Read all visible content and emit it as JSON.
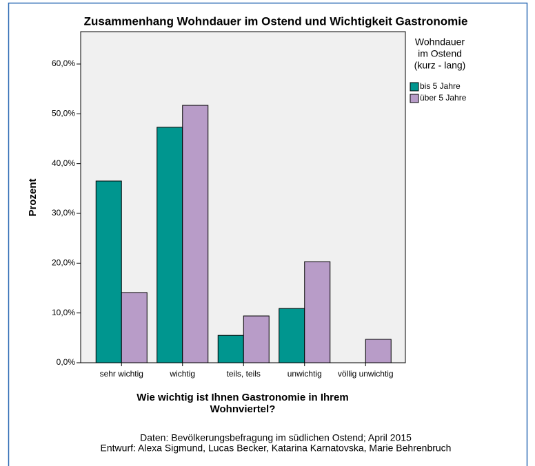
{
  "chart_data": {
    "type": "bar",
    "title": "Zusammenhang Wohndauer im Ostend und Wichtigkeit Gastronomie",
    "xlabel": [
      "Wie wichtig ist Ihnen Gastronomie in Ihrem",
      "Wohnviertel?"
    ],
    "ylabel": "Prozent",
    "legend_title": [
      "Wohndauer",
      "im Ostend",
      "(kurz - lang)"
    ],
    "notes": [
      "Daten: Bevölkerungsbefragung im südlichen Ostend; April 2015",
      "Entwurf: Alexa Sigmund, Lucas Becker, Katarina Karnatovska, Marie Behrenbruch"
    ],
    "categories": [
      "sehr wichtig",
      "wichtig",
      "teils, teils",
      "unwichtig",
      "völlig unwichtig"
    ],
    "series": [
      {
        "name": "bis 5 Jahre",
        "color": "#00968f",
        "values": [
          36.5,
          47.3,
          5.5,
          10.9,
          0
        ]
      },
      {
        "name": "über 5 Jahre",
        "color": "#b89cc8",
        "values": [
          14.1,
          51.7,
          9.4,
          20.3,
          4.7
        ]
      }
    ],
    "ylim": [
      0,
      66.5
    ],
    "yticks": [
      {
        "value": 0,
        "label": "0,0%"
      },
      {
        "value": 10,
        "label": "10,0%"
      },
      {
        "value": 20,
        "label": "20,0%"
      },
      {
        "value": 30,
        "label": "30,0%"
      },
      {
        "value": 40,
        "label": "40,0%"
      },
      {
        "value": 50,
        "label": "50,0%"
      },
      {
        "value": 60,
        "label": "60,0%"
      }
    ],
    "legend": "right"
  }
}
